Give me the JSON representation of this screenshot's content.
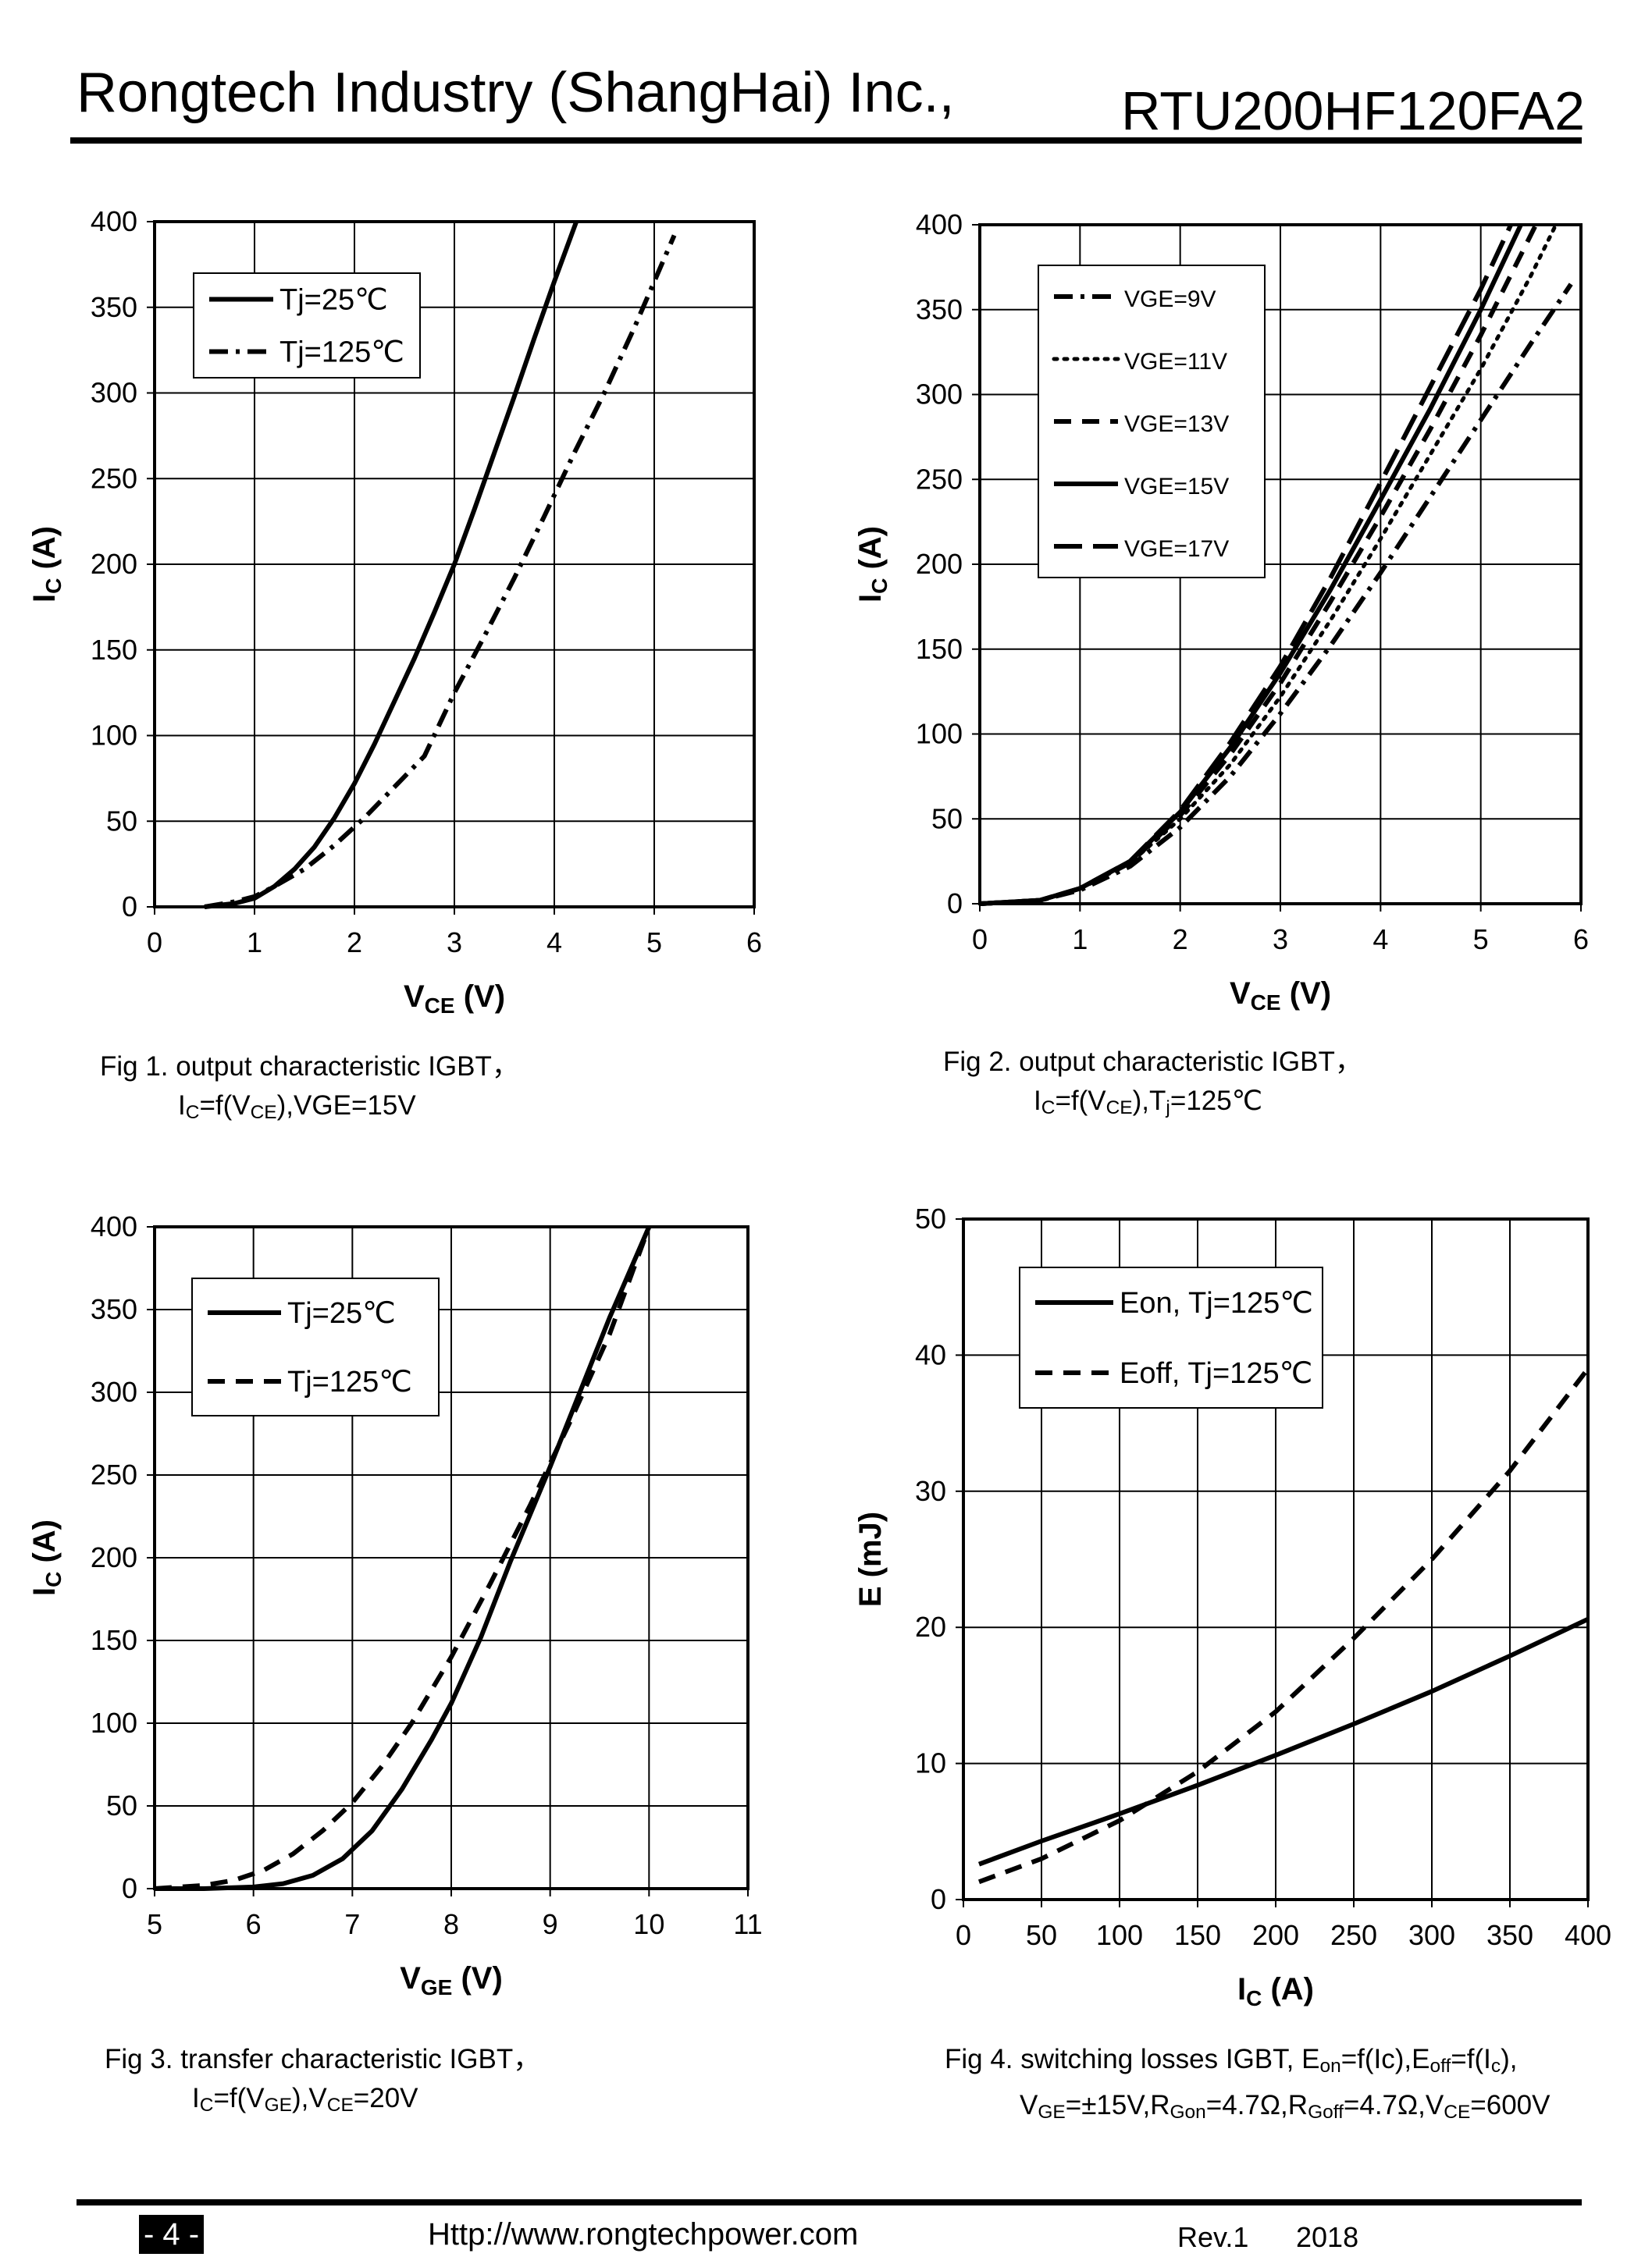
{
  "header": {
    "company": "Rongtech Industry (ShangHai) Inc.,",
    "model": "RTU200HF120FA2"
  },
  "footer": {
    "page": "- 4 -",
    "url": "Http://www.rongtechpower.com",
    "rev": "Rev.1",
    "year": "2018"
  },
  "captions": {
    "fig1": {
      "line1": "Fig 1. output characteristic IGBT，",
      "line2_a": "I",
      "line2_a_sub": "C",
      "line2_b": "=f(V",
      "line2_b_sub": "CE",
      "line2_c": "),VGE=15V"
    },
    "fig2": {
      "line1": "Fig 2. output characteristic IGBT，",
      "line2_a": "I",
      "line2_a_sub": "C",
      "line2_b": "=f(V",
      "line2_b_sub": "CE",
      "line2_c": "),T",
      "line2_c_sub": "j",
      "line2_d": "=125℃"
    },
    "fig3": {
      "line1": "Fig 3. transfer characteristic IGBT，",
      "line2_a": "I",
      "line2_a_sub": "C",
      "line2_b": "=f(V",
      "line2_b_sub": "GE",
      "line2_c": "),V",
      "line2_c_sub": "CE",
      "line2_d": "=20V"
    },
    "fig4": {
      "line1_a": "Fig 4. switching losses IGBT, E",
      "line1_a_sub": "on",
      "line1_b": "=f(Ic),E",
      "line1_b_sub": "off",
      "line1_c": "=f(I",
      "line1_c_sub": "c",
      "line1_d": "),",
      "line2_a": "V",
      "line2_a_sub": "GE",
      "line2_b": "=±15V,R",
      "line2_b_sub": "Gon",
      "line2_c": "=4.7Ω,R",
      "line2_c_sub": "Goff",
      "line2_d": "=4.7Ω,V",
      "line2_d_sub": "CE",
      "line2_e": "=600V"
    }
  },
  "chart_data": [
    {
      "id": "fig1",
      "type": "line",
      "xlabel": "V",
      "xlabel_sub": "CE",
      "xlabel_unit": " (V)",
      "ylabel": "I",
      "ylabel_sub": "C",
      "ylabel_unit": " (A)",
      "xlim": [
        0,
        6
      ],
      "ylim": [
        0,
        400
      ],
      "xticks": [
        0,
        1,
        2,
        3,
        4,
        5,
        6
      ],
      "yticks": [
        0,
        50,
        100,
        150,
        200,
        250,
        300,
        350,
        400
      ],
      "grid": true,
      "legend_position": "top-left",
      "series": [
        {
          "name": "Tj=25℃",
          "style": "solid",
          "x": [
            0.5,
            0.8,
            1.0,
            1.2,
            1.4,
            1.6,
            1.8,
            2.0,
            2.2,
            2.4,
            2.6,
            2.8,
            3.0,
            3.2,
            3.4,
            3.6,
            3.8,
            4.0,
            4.22
          ],
          "y": [
            0,
            2,
            5,
            12,
            22,
            35,
            52,
            72,
            95,
            120,
            145,
            172,
            200,
            232,
            265,
            298,
            332,
            365,
            400
          ]
        },
        {
          "name": "Tj=125℃",
          "style": "dashdot",
          "x": [
            0.5,
            0.8,
            1.0,
            1.2,
            1.5,
            1.8,
            2.1,
            2.4,
            2.7,
            3.0,
            3.3,
            3.6,
            3.9,
            4.2,
            4.5,
            4.8,
            5.0,
            5.2
          ],
          "y": [
            0,
            3,
            6,
            12,
            22,
            36,
            52,
            70,
            88,
            125,
            158,
            192,
            228,
            265,
            300,
            338,
            365,
            392
          ]
        }
      ]
    },
    {
      "id": "fig2",
      "type": "line",
      "xlabel": "V",
      "xlabel_sub": "CE",
      "xlabel_unit": " (V)",
      "ylabel": "I",
      "ylabel_sub": "C",
      "ylabel_unit": " (A)",
      "xlim": [
        0,
        6
      ],
      "ylim": [
        0,
        400
      ],
      "xticks": [
        0,
        1,
        2,
        3,
        4,
        5,
        6
      ],
      "yticks": [
        0,
        50,
        100,
        150,
        200,
        250,
        300,
        350,
        400
      ],
      "grid": true,
      "legend_position": "top-left",
      "series": [
        {
          "name": "VGE=9V",
          "style": "dashdot",
          "x": [
            0,
            0.6,
            1.0,
            1.5,
            2.0,
            2.5,
            3.0,
            3.5,
            4.0,
            4.5,
            5.0,
            5.5,
            5.9
          ],
          "y": [
            0,
            2,
            8,
            22,
            45,
            75,
            112,
            152,
            195,
            240,
            285,
            330,
            365
          ]
        },
        {
          "name": "VGE=11V",
          "style": "dotted",
          "x": [
            0,
            0.6,
            1.0,
            1.5,
            2.0,
            2.5,
            3.0,
            3.5,
            4.0,
            4.5,
            5.0,
            5.5,
            5.75
          ],
          "y": [
            0,
            2,
            9,
            24,
            50,
            82,
            122,
            167,
            215,
            265,
            315,
            370,
            400
          ]
        },
        {
          "name": "VGE=13V",
          "style": "dashed",
          "x": [
            0,
            0.6,
            1.0,
            1.5,
            2.0,
            2.5,
            3.0,
            3.5,
            4.0,
            4.5,
            5.0,
            5.55
          ],
          "y": [
            0,
            2,
            9,
            24,
            52,
            88,
            130,
            178,
            228,
            280,
            335,
            400
          ]
        },
        {
          "name": "VGE=15V",
          "style": "solid",
          "x": [
            0,
            0.6,
            1.0,
            1.5,
            2.0,
            2.5,
            3.0,
            3.5,
            4.0,
            4.5,
            5.0,
            5.4
          ],
          "y": [
            0,
            2,
            9,
            25,
            54,
            92,
            136,
            185,
            238,
            292,
            350,
            400
          ]
        },
        {
          "name": "VGE=17V",
          "style": "longdash",
          "x": [
            0,
            0.6,
            1.0,
            1.5,
            2.0,
            2.5,
            3.0,
            3.5,
            4.0,
            4.5,
            5.0,
            5.3
          ],
          "y": [
            0,
            2,
            9,
            25,
            55,
            95,
            140,
            192,
            248,
            305,
            362,
            400
          ]
        }
      ]
    },
    {
      "id": "fig3",
      "type": "line",
      "xlabel": "V",
      "xlabel_sub": "GE",
      "xlabel_unit": " (V)",
      "ylabel": "I",
      "ylabel_sub": "C",
      "ylabel_unit": " (A)",
      "xlim": [
        5,
        11
      ],
      "ylim": [
        0,
        400
      ],
      "xticks": [
        5,
        6,
        7,
        8,
        9,
        10,
        11
      ],
      "yticks": [
        0,
        50,
        100,
        150,
        200,
        250,
        300,
        350,
        400
      ],
      "grid": true,
      "legend_position": "top-left",
      "series": [
        {
          "name": "Tj=25℃",
          "style": "solid",
          "x": [
            5.0,
            5.5,
            6.0,
            6.3,
            6.6,
            6.9,
            7.2,
            7.5,
            7.8,
            8.0,
            8.3,
            8.6,
            9.0,
            9.3,
            9.6,
            10.0
          ],
          "y": [
            0,
            0,
            1,
            3,
            8,
            18,
            35,
            60,
            90,
            112,
            152,
            198,
            255,
            300,
            345,
            400
          ]
        },
        {
          "name": "Tj=125℃",
          "style": "dashed",
          "x": [
            5.0,
            5.5,
            5.8,
            6.1,
            6.4,
            6.7,
            7.0,
            7.3,
            7.6,
            8.0,
            8.4,
            8.8,
            9.2,
            9.6,
            10.0
          ],
          "y": [
            0,
            2,
            5,
            11,
            21,
            35,
            52,
            74,
            100,
            140,
            185,
            232,
            282,
            335,
            400
          ]
        }
      ]
    },
    {
      "id": "fig4",
      "type": "line",
      "xlabel": "I",
      "xlabel_sub": "C",
      "xlabel_unit": " (A)",
      "ylabel": "E (mJ)",
      "ylabel_sub": "",
      "ylabel_unit": "",
      "xlim": [
        0,
        400
      ],
      "ylim": [
        0,
        50
      ],
      "xticks": [
        0,
        50,
        100,
        150,
        200,
        250,
        300,
        350,
        400
      ],
      "yticks": [
        0,
        10,
        20,
        30,
        40,
        50
      ],
      "grid": true,
      "legend_position": "top-left",
      "series": [
        {
          "name": "Eon, Tj=125℃",
          "style": "solid",
          "x": [
            10,
            50,
            100,
            150,
            200,
            250,
            300,
            350,
            400
          ],
          "y": [
            2.6,
            4.3,
            6.3,
            8.4,
            10.6,
            12.9,
            15.3,
            17.9,
            20.6
          ]
        },
        {
          "name": "Eoff, Tj=125℃",
          "style": "dashed",
          "x": [
            10,
            50,
            100,
            150,
            200,
            250,
            300,
            350,
            400
          ],
          "y": [
            1.3,
            3.0,
            5.8,
            9.4,
            13.8,
            19.2,
            25.0,
            31.5,
            39.0
          ]
        }
      ]
    }
  ]
}
